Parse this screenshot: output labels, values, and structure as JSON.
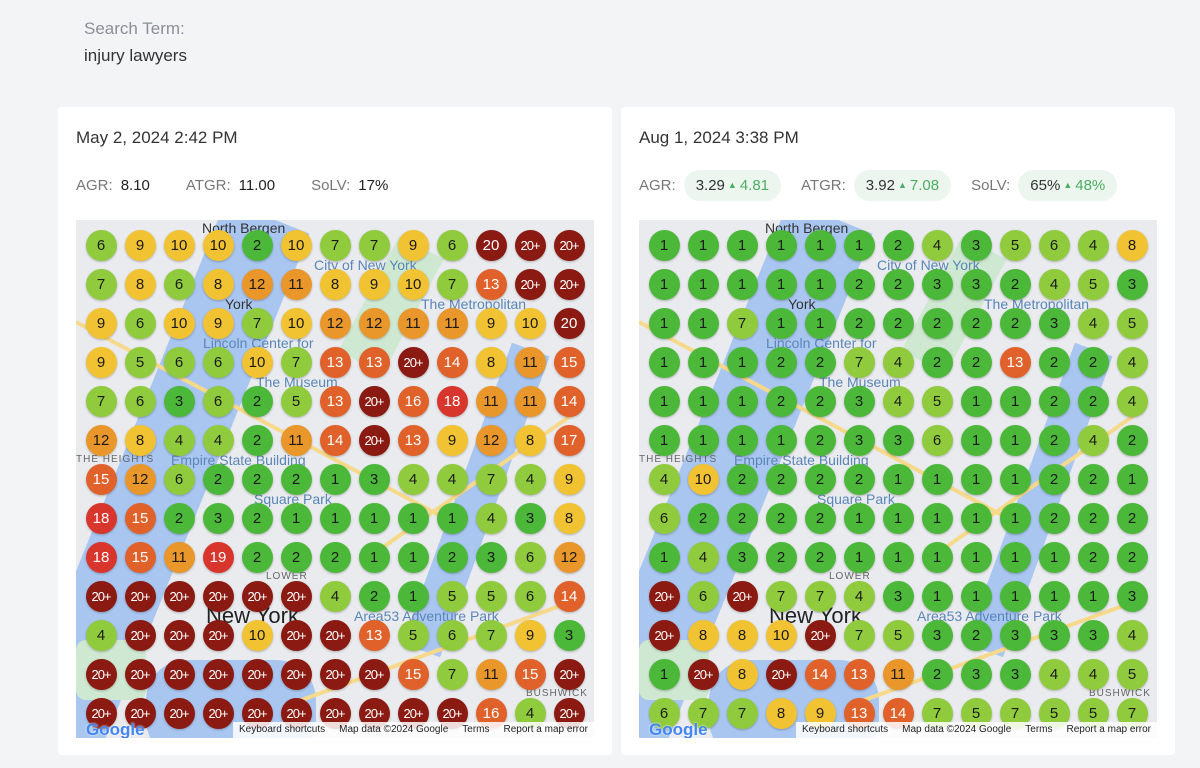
{
  "search": {
    "label": "Search Term:",
    "value": "injury lawyers"
  },
  "colors": {
    "green": "#4cb83a",
    "lightgreen": "#8fcb3c",
    "yellow": "#f1c232",
    "orange": "#e9962b",
    "orangered": "#e0612a",
    "red": "#d8352c",
    "darkred": "#8a1a12"
  },
  "map_labels": {
    "north_bergen": "North Bergen",
    "city_ny": "City of New York",
    "york": "York",
    "metropolitan": "The Metropolitan",
    "lincoln": "Lincoln Center for",
    "museum": "The Museum",
    "heights": "THE HEIGHTS",
    "empire": "Empire State Building",
    "square_park": "Square Park",
    "lower": "LOWER",
    "new_york": "New York",
    "area53": "Area53 Adventure Park",
    "bushwick": "BUSHWICK"
  },
  "attribution": {
    "logo": "Google",
    "shortcuts": "Keyboard shortcuts",
    "map_data": "Map data ©2024 Google",
    "terms": "Terms",
    "report": "Report a map error"
  },
  "reports": [
    {
      "date": "May 2, 2024 2:42 PM",
      "metrics": [
        {
          "label": "AGR:",
          "value": "8.10"
        },
        {
          "label": "ATGR:",
          "value": "11.00"
        },
        {
          "label": "SoLV:",
          "value": "17%"
        }
      ],
      "grid": [
        [
          "6",
          "9",
          "10",
          "10",
          "2",
          "10",
          "7",
          "7",
          "9",
          "6",
          "20",
          "20+",
          "20+"
        ],
        [
          "7",
          "8",
          "6",
          "8",
          "12",
          "11",
          "8",
          "9",
          "10",
          "7",
          "13",
          "20+",
          "20+"
        ],
        [
          "9",
          "6",
          "10",
          "9",
          "7",
          "10",
          "12",
          "12",
          "11",
          "11",
          "9",
          "10",
          "20"
        ],
        [
          "9",
          "5",
          "6",
          "6",
          "10",
          "7",
          "13",
          "13",
          "20+",
          "14",
          "8",
          "11",
          "15"
        ],
        [
          "7",
          "6",
          "3",
          "6",
          "2",
          "5",
          "13",
          "20+",
          "16",
          "18",
          "11",
          "11",
          "14"
        ],
        [
          "12",
          "8",
          "4",
          "4",
          "2",
          "11",
          "14",
          "20+",
          "13",
          "9",
          "12",
          "8",
          "17"
        ],
        [
          "15",
          "12",
          "6",
          "2",
          "2",
          "2",
          "1",
          "3",
          "4",
          "4",
          "7",
          "4",
          "9"
        ],
        [
          "18",
          "15",
          "2",
          "3",
          "2",
          "1",
          "1",
          "1",
          "1",
          "1",
          "4",
          "3",
          "8"
        ],
        [
          "18",
          "15",
          "11",
          "19",
          "2",
          "2",
          "2",
          "1",
          "1",
          "2",
          "3",
          "6",
          "12"
        ],
        [
          "20+",
          "20+",
          "20+",
          "20+",
          "20+",
          "20+",
          "4",
          "2",
          "1",
          "5",
          "5",
          "6",
          "14"
        ],
        [
          "4",
          "20+",
          "20+",
          "20+",
          "10",
          "20+",
          "20+",
          "13",
          "5",
          "6",
          "7",
          "9",
          "3"
        ],
        [
          "20+",
          "20+",
          "20+",
          "20+",
          "20+",
          "20+",
          "20+",
          "20+",
          "15",
          "7",
          "11",
          "15",
          "20+"
        ],
        [
          "20+",
          "20+",
          "20+",
          "20+",
          "20+",
          "20+",
          "20+",
          "20+",
          "20+",
          "20+",
          "16",
          "4",
          "20+"
        ]
      ]
    },
    {
      "date": "Aug 1, 2024 3:38 PM",
      "metrics": [
        {
          "label": "AGR:",
          "value": "3.29",
          "delta": "4.81"
        },
        {
          "label": "ATGR:",
          "value": "3.92",
          "delta": "7.08"
        },
        {
          "label": "SoLV:",
          "value": "65%",
          "delta": "48%"
        }
      ],
      "grid": [
        [
          "1",
          "1",
          "1",
          "1",
          "1",
          "1",
          "2",
          "4",
          "3",
          "5",
          "6",
          "4",
          "8"
        ],
        [
          "1",
          "1",
          "1",
          "1",
          "1",
          "2",
          "2",
          "3",
          "3",
          "2",
          "4",
          "5",
          "3"
        ],
        [
          "1",
          "1",
          "7",
          "1",
          "1",
          "2",
          "2",
          "2",
          "2",
          "2",
          "3",
          "4",
          "5"
        ],
        [
          "1",
          "1",
          "1",
          "2",
          "2",
          "7",
          "4",
          "2",
          "2",
          "13",
          "2",
          "2",
          "4"
        ],
        [
          "1",
          "1",
          "1",
          "2",
          "2",
          "3",
          "4",
          "5",
          "1",
          "1",
          "2",
          "2",
          "4"
        ],
        [
          "1",
          "1",
          "1",
          "1",
          "2",
          "3",
          "3",
          "6",
          "1",
          "1",
          "2",
          "4",
          "2"
        ],
        [
          "4",
          "10",
          "2",
          "2",
          "2",
          "2",
          "1",
          "1",
          "1",
          "1",
          "2",
          "2",
          "1"
        ],
        [
          "6",
          "2",
          "2",
          "2",
          "2",
          "1",
          "1",
          "1",
          "1",
          "1",
          "2",
          "2",
          "2"
        ],
        [
          "1",
          "4",
          "3",
          "2",
          "2",
          "1",
          "1",
          "1",
          "1",
          "1",
          "1",
          "2",
          "2"
        ],
        [
          "20+",
          "6",
          "20+",
          "7",
          "7",
          "4",
          "3",
          "1",
          "1",
          "1",
          "1",
          "1",
          "3"
        ],
        [
          "20+",
          "8",
          "8",
          "10",
          "20+",
          "7",
          "5",
          "3",
          "2",
          "3",
          "3",
          "3",
          "4"
        ],
        [
          "1",
          "20+",
          "8",
          "20+",
          "14",
          "13",
          "11",
          "2",
          "3",
          "3",
          "4",
          "4",
          "5"
        ],
        [
          "6",
          "7",
          "7",
          "8",
          "9",
          "13",
          "14",
          "7",
          "5",
          "7",
          "5",
          "5",
          "7"
        ]
      ]
    }
  ]
}
